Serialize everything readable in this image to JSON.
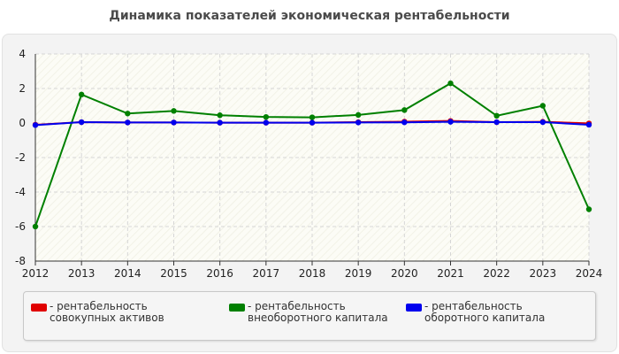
{
  "chart_data": {
    "type": "line",
    "title": "Динамика показателей экономическая рентабельности",
    "xlabel": "",
    "ylabel": "",
    "x": [
      "2012",
      "2013",
      "2014",
      "2015",
      "2016",
      "2017",
      "2018",
      "2019",
      "2020",
      "2021",
      "2022",
      "2023",
      "2024"
    ],
    "ylim": [
      -8,
      4
    ],
    "yticks": [
      "4",
      "2",
      "0",
      "-2",
      "-4",
      "-6",
      "-8"
    ],
    "grid": true,
    "legend_position": "bottom",
    "series": [
      {
        "name": "- рентабельность совокупных активов",
        "color": "#e00000",
        "values": [
          -0.1,
          0.05,
          0.03,
          0.03,
          0.02,
          0.02,
          0.02,
          0.05,
          0.08,
          0.12,
          0.05,
          0.07,
          -0.02
        ]
      },
      {
        "name": "- рентабельность внеоборотного капитала",
        "color": "#008000",
        "values": [
          -6.0,
          1.65,
          0.55,
          0.7,
          0.45,
          0.35,
          0.33,
          0.47,
          0.75,
          2.3,
          0.42,
          1.0,
          -5.0
        ]
      },
      {
        "name": "- рентабельность оборотного капитала",
        "color": "#0000ee",
        "values": [
          -0.12,
          0.05,
          0.03,
          0.03,
          0.02,
          0.02,
          0.02,
          0.03,
          0.04,
          0.07,
          0.05,
          0.05,
          -0.1
        ]
      }
    ]
  }
}
